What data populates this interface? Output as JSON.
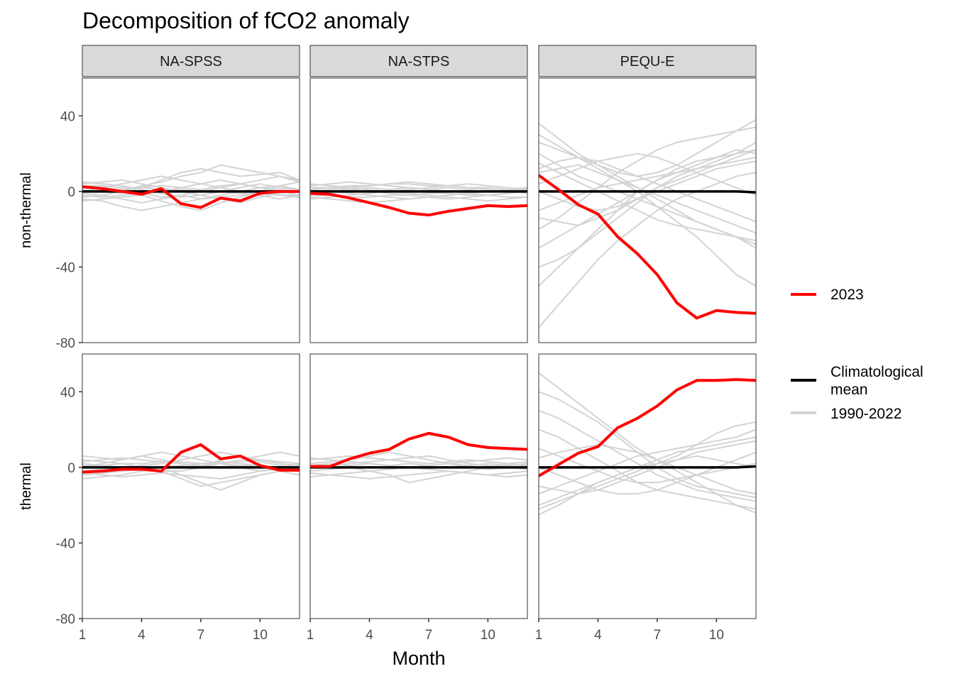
{
  "chart_data": {
    "type": "line",
    "title": "Decomposition of fCO2 anomaly",
    "xlabel": "Month",
    "x": [
      1,
      2,
      3,
      4,
      5,
      6,
      7,
      8,
      9,
      10,
      11,
      12
    ],
    "x_ticks": [
      1,
      4,
      7,
      10
    ],
    "y_ticks": [
      40,
      0,
      -40,
      -80
    ],
    "ylim": [
      -80,
      60
    ],
    "facet_columns": [
      "NA-SPSS",
      "NA-STPS",
      "PEQU-E"
    ],
    "facet_rows": [
      "non-thermal",
      "thermal"
    ],
    "legend": {
      "position": "right",
      "entries": [
        {
          "label": "2023",
          "color": "#ff0000"
        },
        {
          "label": "Climatological mean",
          "color": "#000000"
        },
        {
          "label": "1990-2022",
          "color": "#bebebe"
        }
      ]
    },
    "colors": {
      "year_2023": "#ff0000",
      "climatological_mean": "#000000",
      "years_1990_2022": "#d3d3d3"
    },
    "panels": [
      {
        "row": "non-thermal",
        "column": "NA-SPSS",
        "y2023": [
          2.5,
          1.5,
          0,
          -1.5,
          1.5,
          -6.5,
          -8.5,
          -3.5,
          -5,
          -1,
          0,
          0
        ],
        "mean": [
          0,
          0,
          0,
          0,
          0,
          0,
          0,
          0,
          0,
          0,
          0,
          0
        ],
        "years_1990_2022": [
          [
            3,
            2,
            1,
            2,
            3,
            2,
            1,
            3,
            4,
            2,
            1,
            0
          ],
          [
            -2,
            -3,
            -2,
            -1,
            -3,
            -2,
            -4,
            -3,
            -2,
            -1,
            -2,
            -3
          ],
          [
            4,
            5,
            6,
            4,
            2,
            0,
            -2,
            -4,
            -6,
            -3,
            -1,
            0
          ],
          [
            -4,
            -5,
            -8,
            -10,
            -8,
            -6,
            -4,
            -2,
            0,
            2,
            3,
            1
          ],
          [
            1,
            0,
            -1,
            2,
            6,
            10,
            12,
            10,
            8,
            9,
            10,
            6
          ],
          [
            0,
            2,
            4,
            6,
            8,
            6,
            4,
            2,
            0,
            -2,
            -4,
            -2
          ],
          [
            -1,
            -2,
            -4,
            -6,
            -4,
            -2,
            0,
            2,
            4,
            6,
            8,
            6
          ],
          [
            5,
            4,
            3,
            1,
            -1,
            -3,
            -2,
            0,
            2,
            4,
            2,
            1
          ],
          [
            -3,
            -2,
            0,
            3,
            5,
            8,
            10,
            14,
            12,
            10,
            8,
            5
          ],
          [
            2,
            1,
            0,
            -2,
            -5,
            -8,
            -10,
            -6,
            -3,
            0,
            3,
            5
          ],
          [
            -5,
            -4,
            -3,
            -2,
            0,
            2,
            4,
            6,
            4,
            2,
            0,
            -2
          ],
          [
            3,
            3,
            2,
            2,
            1,
            1,
            0,
            0,
            -1,
            -1,
            -2,
            -2
          ]
        ]
      },
      {
        "row": "non-thermal",
        "column": "NA-STPS",
        "y2023": [
          -1,
          -1.5,
          -3.5,
          -6,
          -8.5,
          -11.5,
          -12.5,
          -10.5,
          -9,
          -7.5,
          -8,
          -7.5
        ],
        "mean": [
          0,
          0,
          0,
          0,
          0,
          0,
          0,
          0,
          0,
          0,
          0,
          0
        ],
        "years_1990_2022": [
          [
            2,
            2,
            3,
            3,
            4,
            4,
            3,
            3,
            2,
            2,
            1,
            1
          ],
          [
            -2,
            -2,
            -3,
            -3,
            -2,
            -2,
            -1,
            -1,
            -2,
            -2,
            -3,
            -3
          ],
          [
            1,
            0,
            -1,
            -2,
            -3,
            -4,
            -3,
            -2,
            -1,
            0,
            1,
            2
          ],
          [
            3,
            4,
            5,
            4,
            3,
            2,
            1,
            0,
            -1,
            -2,
            -1,
            0
          ],
          [
            -3,
            -4,
            -5,
            -6,
            -5,
            -4,
            -3,
            -2,
            -1,
            0,
            1,
            2
          ],
          [
            0,
            1,
            2,
            3,
            4,
            5,
            4,
            3,
            2,
            1,
            0,
            -1
          ],
          [
            -1,
            0,
            1,
            0,
            -1,
            -2,
            -3,
            -4,
            -3,
            -2,
            -1,
            0
          ],
          [
            4,
            3,
            2,
            1,
            0,
            1,
            2,
            3,
            4,
            3,
            2,
            1
          ],
          [
            -4,
            -3,
            -2,
            -1,
            0,
            -1,
            -2,
            -3,
            -4,
            -5,
            -4,
            -3
          ],
          [
            1,
            2,
            1,
            2,
            1,
            2,
            1,
            2,
            1,
            2,
            1,
            2
          ]
        ]
      },
      {
        "row": "non-thermal",
        "column": "PEQU-E",
        "y2023": [
          8.5,
          1,
          -7,
          -12,
          -24,
          -33,
          -44,
          -59,
          -67,
          -63,
          -64,
          -64.5
        ],
        "mean": [
          0,
          0,
          0,
          0,
          0,
          0,
          0,
          0,
          0,
          0,
          0,
          -0.5
        ],
        "years_1990_2022": [
          [
            36,
            28,
            20,
            14,
            8,
            2,
            -4,
            -10,
            -16,
            -20,
            -24,
            -28
          ],
          [
            -72,
            -60,
            -48,
            -36,
            -26,
            -18,
            -10,
            -4,
            0,
            4,
            8,
            10
          ],
          [
            30,
            24,
            18,
            14,
            10,
            8,
            10,
            14,
            20,
            26,
            32,
            38
          ],
          [
            -20,
            -14,
            -6,
            2,
            10,
            16,
            22,
            26,
            28,
            30,
            32,
            34
          ],
          [
            20,
            14,
            8,
            4,
            0,
            -4,
            -8,
            -12,
            -16,
            -20,
            -24,
            -30
          ],
          [
            -30,
            -24,
            -18,
            -12,
            -6,
            0,
            6,
            10,
            14,
            18,
            22,
            20
          ],
          [
            10,
            12,
            14,
            10,
            6,
            2,
            -2,
            -6,
            -10,
            -14,
            -18,
            -22
          ],
          [
            -10,
            -6,
            -2,
            2,
            4,
            6,
            8,
            10,
            12,
            16,
            20,
            26
          ],
          [
            26,
            22,
            18,
            12,
            6,
            0,
            -8,
            -16,
            -24,
            -34,
            -44,
            -50
          ],
          [
            -40,
            -36,
            -30,
            -22,
            -14,
            -6,
            2,
            8,
            12,
            14,
            16,
            18
          ],
          [
            4,
            8,
            12,
            16,
            18,
            20,
            18,
            14,
            10,
            6,
            2,
            -2
          ],
          [
            -14,
            -16,
            -18,
            -14,
            -10,
            -4,
            2,
            6,
            10,
            14,
            18,
            22
          ],
          [
            15,
            10,
            5,
            0,
            -5,
            -10,
            -15,
            -18,
            -20,
            -22,
            -24,
            -26
          ],
          [
            -50,
            -40,
            -30,
            -20,
            -10,
            0,
            6,
            12,
            16,
            18,
            20,
            22
          ],
          [
            0,
            -4,
            -8,
            -10,
            -8,
            -4,
            0,
            4,
            8,
            12,
            14,
            16
          ],
          [
            12,
            16,
            18,
            16,
            12,
            8,
            4,
            0,
            -4,
            -8,
            -12,
            -16
          ]
        ]
      },
      {
        "row": "thermal",
        "column": "NA-SPSS",
        "y2023": [
          -2.5,
          -2,
          -1,
          -1,
          -2,
          8,
          12,
          4.5,
          6,
          1,
          -1.5,
          -1.5
        ],
        "mean": [
          0,
          0,
          0,
          0,
          0,
          0,
          0,
          0,
          0,
          0,
          0,
          0
        ],
        "years_1990_2022": [
          [
            3,
            4,
            5,
            4,
            3,
            2,
            1,
            2,
            3,
            4,
            3,
            2
          ],
          [
            -3,
            -4,
            -5,
            -4,
            -3,
            -4,
            -5,
            -6,
            -4,
            -2,
            -1,
            -2
          ],
          [
            6,
            5,
            4,
            6,
            8,
            6,
            4,
            2,
            0,
            -2,
            0,
            2
          ],
          [
            -6,
            -5,
            -4,
            -2,
            0,
            -4,
            -8,
            -12,
            -8,
            -4,
            -2,
            -4
          ],
          [
            0,
            2,
            4,
            6,
            4,
            2,
            0,
            2,
            4,
            6,
            8,
            6
          ],
          [
            2,
            1,
            0,
            -1,
            -2,
            -6,
            -10,
            -8,
            -6,
            -4,
            -2,
            0
          ],
          [
            -2,
            -1,
            0,
            1,
            2,
            4,
            6,
            8,
            6,
            4,
            2,
            1
          ],
          [
            4,
            3,
            2,
            0,
            -2,
            -2,
            0,
            4,
            6,
            3,
            1,
            0
          ],
          [
            -4,
            -3,
            -2,
            -1,
            0,
            1,
            2,
            3,
            2,
            1,
            0,
            -1
          ],
          [
            1,
            1,
            2,
            2,
            3,
            3,
            2,
            2,
            1,
            1,
            0,
            0
          ]
        ]
      },
      {
        "row": "thermal",
        "column": "NA-STPS",
        "y2023": [
          0.5,
          0.5,
          4.5,
          7.5,
          9.5,
          15,
          18,
          16,
          12,
          10.5,
          10,
          9.5
        ],
        "mean": [
          0,
          0,
          0,
          0,
          0,
          0,
          0,
          0,
          0,
          0,
          0,
          0
        ],
        "years_1990_2022": [
          [
            4,
            5,
            6,
            5,
            4,
            3,
            2,
            3,
            4,
            3,
            2,
            1
          ],
          [
            -3,
            -4,
            -5,
            -6,
            -5,
            -4,
            -3,
            -2,
            -3,
            -4,
            -3,
            -2
          ],
          [
            2,
            3,
            4,
            6,
            8,
            6,
            4,
            2,
            0,
            -1,
            0,
            1
          ],
          [
            -2,
            -1,
            0,
            -2,
            -4,
            -8,
            -6,
            -4,
            -2,
            0,
            2,
            3
          ],
          [
            0,
            1,
            2,
            3,
            4,
            5,
            6,
            4,
            2,
            1,
            0,
            -1
          ],
          [
            5,
            4,
            3,
            2,
            1,
            0,
            -1,
            -2,
            -3,
            -4,
            -5,
            -4
          ],
          [
            -5,
            -4,
            -3,
            -2,
            -1,
            0,
            1,
            2,
            3,
            4,
            5,
            4
          ],
          [
            1,
            2,
            1,
            2,
            1,
            2,
            1,
            2,
            1,
            2,
            1,
            2
          ]
        ]
      },
      {
        "row": "thermal",
        "column": "PEQU-E",
        "y2023": [
          -4.5,
          1.5,
          7.5,
          11,
          21,
          26,
          32.5,
          41,
          46,
          46,
          46.5,
          46
        ],
        "mean": [
          0,
          0,
          0,
          0,
          0,
          0,
          0,
          0,
          0,
          0,
          0,
          0.5
        ],
        "years_1990_2022": [
          [
            50,
            42,
            34,
            26,
            18,
            10,
            4,
            -2,
            -8,
            -14,
            -20,
            -24
          ],
          [
            -22,
            -18,
            -14,
            -10,
            -6,
            -2,
            2,
            6,
            12,
            18,
            22,
            24
          ],
          [
            40,
            36,
            30,
            24,
            16,
            8,
            0,
            -6,
            -10,
            -12,
            -14,
            -16
          ],
          [
            -10,
            -12,
            -14,
            -12,
            -8,
            -4,
            0,
            4,
            8,
            10,
            12,
            14
          ],
          [
            10,
            6,
            2,
            -2,
            -6,
            -8,
            -8,
            -6,
            -4,
            -2,
            0,
            2
          ],
          [
            -20,
            -16,
            -12,
            -8,
            -4,
            0,
            4,
            8,
            10,
            12,
            14,
            16
          ],
          [
            20,
            16,
            10,
            4,
            -2,
            -8,
            -12,
            -14,
            -16,
            -18,
            -20,
            -22
          ],
          [
            0,
            -4,
            -8,
            -12,
            -14,
            -14,
            -12,
            -8,
            -4,
            0,
            4,
            8
          ],
          [
            30,
            26,
            20,
            14,
            8,
            2,
            -4,
            -8,
            -12,
            -14,
            -16,
            -18
          ],
          [
            -14,
            -10,
            -6,
            -2,
            2,
            6,
            8,
            10,
            12,
            14,
            16,
            20
          ],
          [
            5,
            8,
            10,
            12,
            10,
            8,
            4,
            0,
            -4,
            -8,
            -12,
            -14
          ],
          [
            -25,
            -20,
            -14,
            -8,
            -4,
            0,
            2,
            4,
            6,
            4,
            2,
            0
          ]
        ]
      }
    ]
  }
}
